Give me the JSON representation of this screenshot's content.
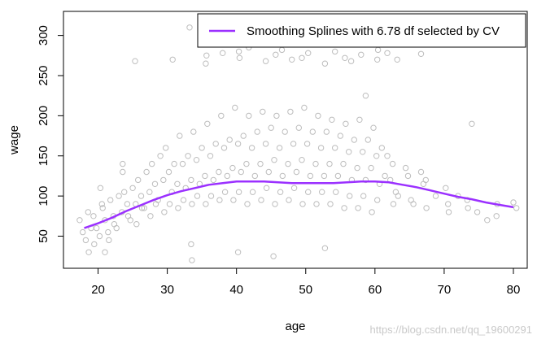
{
  "chart_data": {
    "type": "scatter",
    "xlabel": "age",
    "ylabel": "wage",
    "xlim": [
      15,
      82
    ],
    "ylim": [
      10,
      330
    ],
    "x_ticks": [
      "20",
      "30",
      "40",
      "50",
      "60",
      "70",
      "80"
    ],
    "y_ticks": [
      "50",
      "100",
      "150",
      "200",
      "250",
      "300"
    ],
    "grid": false,
    "legend_position": "top-right",
    "point_color": "#bdbdbd",
    "line_color": "#9b30ff",
    "series": [
      {
        "name": "Smoothing Splines with 6.78 df selected by CV",
        "type": "line",
        "x": [
          18,
          20,
          22,
          24,
          26,
          28,
          30,
          32,
          34,
          36,
          38,
          40,
          42,
          44,
          46,
          48,
          50,
          52,
          54,
          56,
          58,
          60,
          62,
          64,
          66,
          68,
          70,
          72,
          74,
          76,
          78,
          80
        ],
        "y": [
          60,
          66,
          73,
          81,
          88,
          95,
          101,
          106,
          110,
          114,
          116,
          118,
          118,
          118,
          117,
          116,
          116,
          116,
          116,
          117,
          118,
          118,
          117,
          114,
          111,
          107,
          103,
          99,
          96,
          92,
          89,
          86
        ]
      }
    ],
    "scatter_points": {
      "x": [
        18,
        18,
        18,
        18,
        19,
        19,
        19,
        20,
        20,
        20,
        20,
        21,
        21,
        21,
        21,
        22,
        22,
        22,
        22,
        23,
        23,
        23,
        24,
        24,
        24,
        24,
        25,
        25,
        25,
        26,
        26,
        26,
        26,
        27,
        27,
        27,
        28,
        28,
        28,
        28,
        29,
        29,
        29,
        30,
        30,
        30,
        30,
        31,
        31,
        31,
        32,
        32,
        32,
        32,
        33,
        33,
        33,
        34,
        34,
        34,
        34,
        35,
        35,
        35,
        36,
        36,
        36,
        36,
        37,
        37,
        37,
        38,
        38,
        38,
        38,
        39,
        39,
        39,
        40,
        40,
        40,
        40,
        41,
        41,
        41,
        42,
        42,
        42,
        42,
        43,
        43,
        43,
        44,
        44,
        44,
        44,
        45,
        45,
        45,
        46,
        46,
        46,
        46,
        47,
        47,
        47,
        48,
        48,
        48,
        48,
        49,
        49,
        49,
        50,
        50,
        50,
        50,
        51,
        51,
        51,
        52,
        52,
        52,
        52,
        53,
        53,
        53,
        54,
        54,
        54,
        54,
        55,
        55,
        55,
        56,
        56,
        56,
        56,
        57,
        57,
        57,
        58,
        58,
        58,
        58,
        59,
        59,
        59,
        60,
        60,
        60,
        60,
        61,
        61,
        61,
        62,
        62,
        62,
        63,
        63,
        64,
        64,
        65,
        65,
        66,
        66,
        67,
        67,
        68,
        69,
        70,
        70,
        71,
        72,
        73,
        74,
        75,
        76,
        77,
        78,
        80,
        80,
        26,
        31,
        33,
        35,
        36,
        38,
        40,
        41,
        42,
        44,
        45,
        47,
        48,
        49,
        51,
        53,
        54,
        55,
        57,
        58,
        60,
        61,
        62,
        63,
        66,
        34,
        21,
        33,
        46,
        53,
        40,
        58,
        24,
        74
      ],
      "y": [
        70,
        55,
        45,
        30,
        80,
        60,
        40,
        75,
        60,
        50,
        85,
        90,
        70,
        55,
        110,
        95,
        75,
        60,
        45,
        100,
        80,
        65,
        105,
        90,
        70,
        130,
        110,
        90,
        75,
        120,
        100,
        85,
        65,
        130,
        105,
        85,
        140,
        115,
        95,
        75,
        150,
        120,
        90,
        160,
        130,
        105,
        80,
        140,
        115,
        90,
        175,
        140,
        110,
        85,
        150,
        120,
        95,
        180,
        145,
        115,
        90,
        160,
        125,
        100,
        190,
        150,
        120,
        90,
        165,
        130,
        100,
        200,
        160,
        125,
        95,
        170,
        135,
        105,
        210,
        165,
        130,
        95,
        175,
        140,
        105,
        200,
        160,
        125,
        90,
        180,
        140,
        105,
        205,
        165,
        130,
        95,
        185,
        145,
        110,
        200,
        160,
        125,
        90,
        180,
        140,
        105,
        205,
        165,
        130,
        95,
        185,
        145,
        110,
        210,
        165,
        125,
        90,
        180,
        140,
        105,
        200,
        160,
        125,
        90,
        180,
        140,
        105,
        195,
        160,
        125,
        90,
        175,
        140,
        105,
        190,
        155,
        120,
        85,
        170,
        135,
        100,
        195,
        155,
        120,
        85,
        170,
        135,
        100,
        185,
        150,
        115,
        80,
        160,
        125,
        95,
        150,
        120,
        90,
        140,
        105,
        135,
        100,
        125,
        95,
        130,
        90,
        115,
        85,
        120,
        100,
        110,
        80,
        90,
        100,
        85,
        95,
        80,
        70,
        90,
        75,
        92,
        85,
        268,
        270,
        310,
        275,
        265,
        278,
        272,
        280,
        285,
        268,
        276,
        282,
        270,
        272,
        278,
        265,
        280,
        272,
        268,
        276,
        282,
        270,
        278,
        270,
        277,
        20,
        30,
        40,
        25,
        35,
        30,
        225,
        140,
        190
      ]
    }
  },
  "watermark": "https://blog.csdn.net/qq_19600291"
}
